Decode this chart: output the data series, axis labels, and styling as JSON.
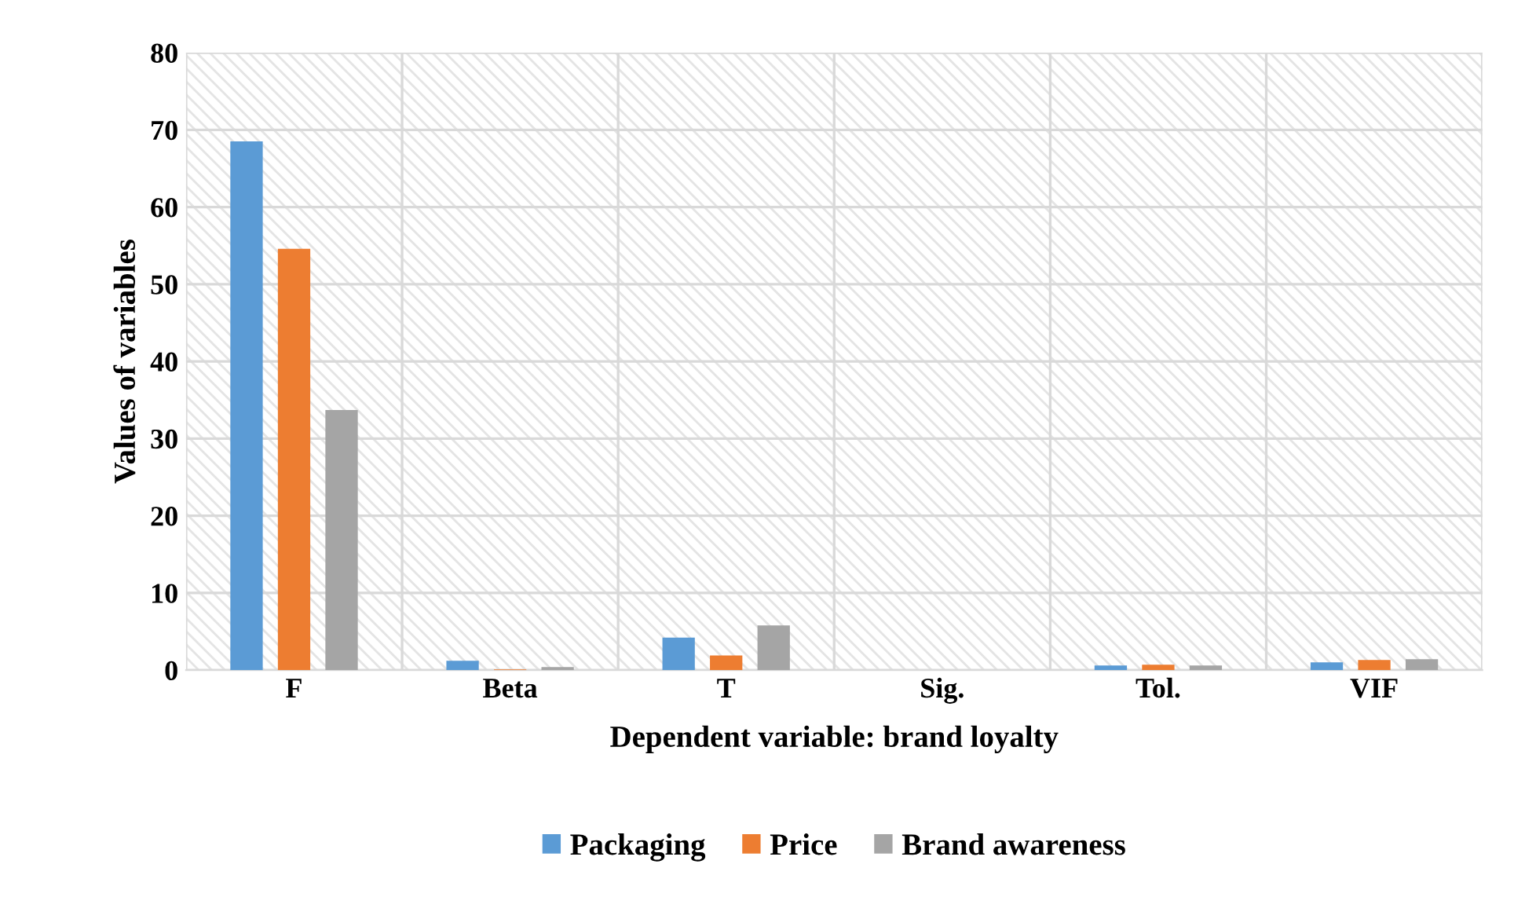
{
  "chart_data": {
    "type": "bar",
    "xlabel": "Dependent variable: brand loyalty",
    "ylabel": "Values of variables",
    "categories": [
      "F",
      "Beta",
      "T",
      "Sig.",
      "Tol.",
      "VIF"
    ],
    "series": [
      {
        "name": "Packaging",
        "color": "#5b9bd5",
        "values": [
          68.5,
          1.2,
          4.2,
          0,
          0.6,
          1.0
        ]
      },
      {
        "name": "Price",
        "color": "#ed7d31",
        "values": [
          54.6,
          0.1,
          1.9,
          0,
          0.7,
          1.3
        ]
      },
      {
        "name": "Brand awareness",
        "color": "#a5a5a5",
        "values": [
          33.7,
          0.4,
          5.8,
          0,
          0.6,
          1.4
        ]
      }
    ],
    "ylim": [
      0,
      80
    ],
    "yticks": [
      0,
      10,
      20,
      30,
      40,
      50,
      60,
      70,
      80
    ],
    "grid": true,
    "legend": "bottom"
  }
}
